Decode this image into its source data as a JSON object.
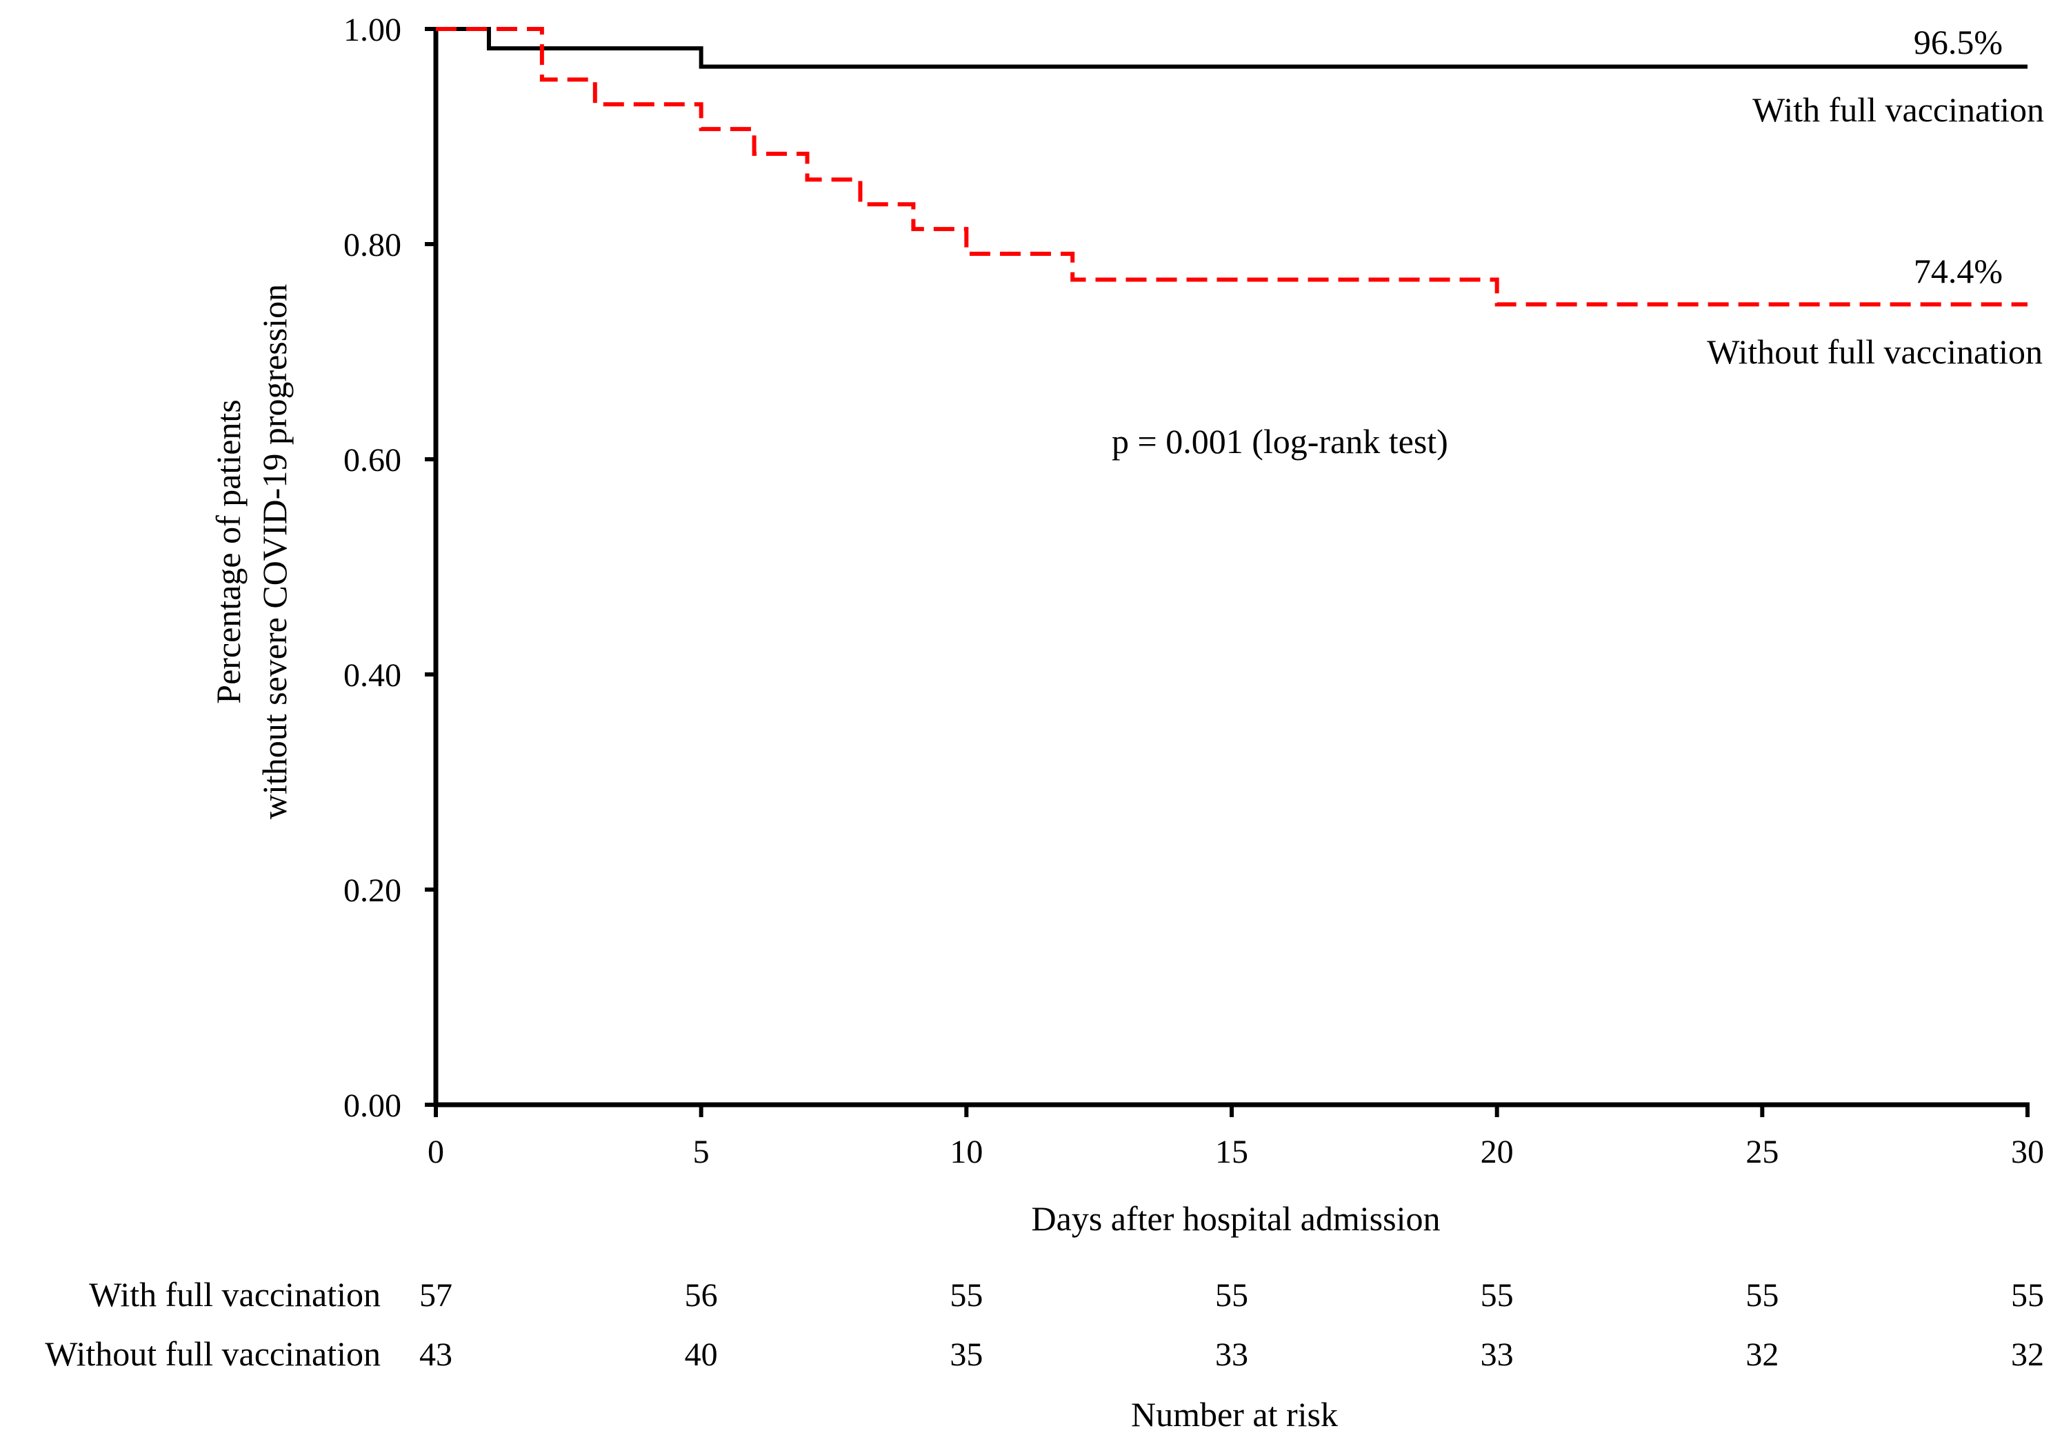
{
  "chart_data": {
    "type": "line",
    "subtype": "kaplan-meier",
    "title": "",
    "xlabel": "Days after hospital admission",
    "ylabel_lines": [
      "Percentage of patients",
      "without severe COVID-19 progression"
    ],
    "xlim": [
      0,
      30
    ],
    "ylim": [
      0,
      1
    ],
    "xticks": [
      0,
      5,
      10,
      15,
      20,
      25,
      30
    ],
    "xtick_labels": [
      "0",
      "5",
      "10",
      "15",
      "20",
      "25",
      "30"
    ],
    "yticks": [
      0,
      0.2,
      0.4,
      0.6,
      0.8,
      1.0
    ],
    "ytick_labels": [
      "0.00",
      "0.20",
      "0.40",
      "0.60",
      "0.80",
      "1.00"
    ],
    "grid": false,
    "series": [
      {
        "name": "With full vaccination",
        "color": "#000000",
        "dash": "solid",
        "steps": [
          [
            0,
            1.0
          ],
          [
            1,
            0.982
          ],
          [
            5,
            0.965
          ],
          [
            30,
            0.965
          ]
        ],
        "end_label": "96.5%"
      },
      {
        "name": "Without full vaccination",
        "color": "#ff0000",
        "dash": "dashed",
        "steps": [
          [
            0,
            1.0
          ],
          [
            2,
            0.953
          ],
          [
            3,
            0.93
          ],
          [
            5,
            0.907
          ],
          [
            6,
            0.884
          ],
          [
            7,
            0.86
          ],
          [
            8,
            0.837
          ],
          [
            9,
            0.814
          ],
          [
            10,
            0.791
          ],
          [
            12,
            0.767
          ],
          [
            20,
            0.744
          ],
          [
            30,
            0.744
          ]
        ],
        "end_label": "74.4%"
      }
    ],
    "annotation": "p = 0.001  (log-rank test)",
    "risk_table": {
      "title": "Number at risk",
      "days": [
        0,
        5,
        10,
        15,
        20,
        25,
        30
      ],
      "rows": [
        {
          "label": "With full vaccination",
          "values": [
            "57",
            "56",
            "55",
            "55",
            "55",
            "55",
            "55"
          ]
        },
        {
          "label": "Without full vaccination",
          "values": [
            "43",
            "40",
            "35",
            "33",
            "33",
            "32",
            "32"
          ]
        }
      ]
    }
  }
}
